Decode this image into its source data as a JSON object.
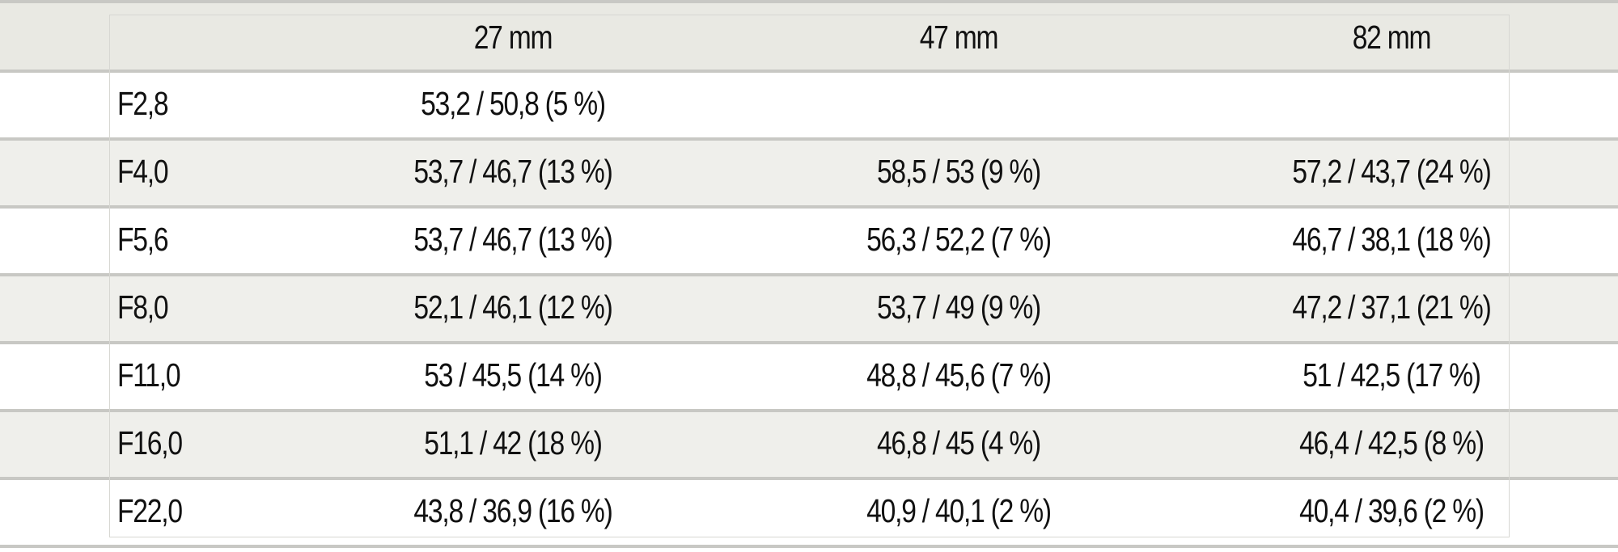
{
  "table": {
    "columns": [
      "",
      "27 mm",
      "47 mm",
      "82 mm"
    ],
    "rows": [
      {
        "aperture": "F2,8",
        "values": [
          "53,2 / 50,8 (5 %)",
          "",
          ""
        ]
      },
      {
        "aperture": "F4,0",
        "values": [
          "53,7 / 46,7 (13 %)",
          "58,5 / 53 (9 %)",
          "57,2 / 43,7 (24 %)"
        ]
      },
      {
        "aperture": "F5,6",
        "values": [
          "53,7 / 46,7 (13 %)",
          "56,3 / 52,2 (7 %)",
          "46,7 / 38,1 (18 %)"
        ]
      },
      {
        "aperture": "F8,0",
        "values": [
          "52,1 / 46,1 (12 %)",
          "53,7 / 49 (9 %)",
          "47,2 / 37,1 (21 %)"
        ]
      },
      {
        "aperture": "F11,0",
        "values": [
          "53 / 45,5 (14 %)",
          "48,8 / 45,6 (7 %)",
          "51 / 42,5 (17 %)"
        ]
      },
      {
        "aperture": "F16,0",
        "values": [
          "51,1 / 42 (18 %)",
          "46,8 / 45 (4 %)",
          "46,4 / 42,5 (8 %)"
        ]
      },
      {
        "aperture": "F22,0",
        "values": [
          "43,8 / 36,9 (16 %)",
          "40,9 / 40,1 (2 %)",
          "40,4 / 39,6 (2 %)"
        ]
      }
    ]
  }
}
